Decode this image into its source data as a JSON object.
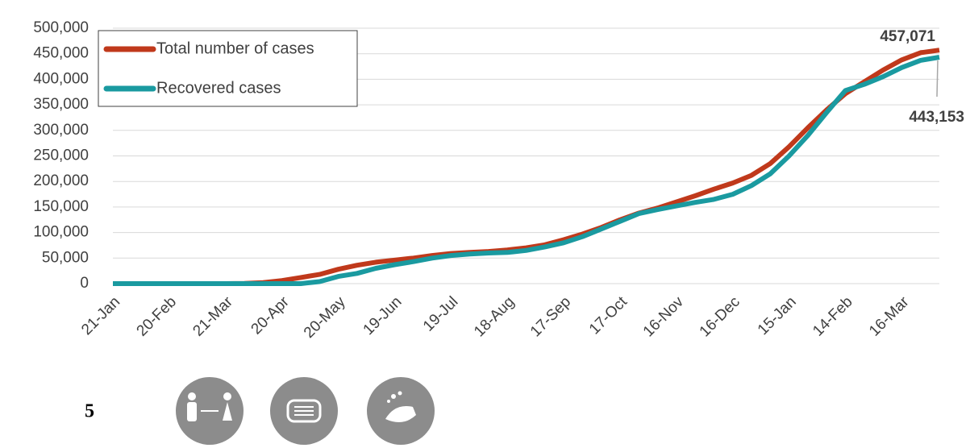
{
  "chart_data": {
    "type": "line",
    "categories": [
      "21-Jan",
      null,
      null,
      "20-Feb",
      null,
      null,
      "21-Mar",
      null,
      null,
      "20-Apr",
      null,
      null,
      "20-May",
      null,
      null,
      "19-Jun",
      null,
      null,
      "19-Jul",
      null,
      null,
      "18-Aug",
      null,
      null,
      "17-Sep",
      null,
      null,
      "17-Oct",
      null,
      null,
      "16-Nov",
      null,
      null,
      "16-Dec",
      null,
      null,
      "15-Jan",
      null,
      null,
      "14-Feb",
      null,
      null,
      "16-Mar",
      null,
      null
    ],
    "series": [
      {
        "name": "Total number of cases",
        "color": "#c0391b",
        "values": [
          0,
          0,
          0,
          0,
          0,
          0,
          0,
          500,
          2000,
          6000,
          12000,
          18000,
          28000,
          36000,
          42000,
          46000,
          50000,
          55000,
          59000,
          61000,
          63000,
          66000,
          70000,
          76000,
          86000,
          97000,
          110000,
          125000,
          138000,
          148000,
          160000,
          172000,
          185000,
          197000,
          212000,
          235000,
          268000,
          305000,
          340000,
          372000,
          395000,
          418000,
          438000,
          452000,
          457071
        ]
      },
      {
        "name": "Recovered cases",
        "color": "#1a9aa0",
        "values": [
          0,
          0,
          0,
          0,
          0,
          0,
          0,
          0,
          0,
          0,
          0,
          4000,
          14000,
          20000,
          30000,
          37000,
          43000,
          50000,
          55000,
          58000,
          60000,
          61000,
          65000,
          72000,
          80000,
          92000,
          107000,
          122000,
          137000,
          145000,
          152000,
          159000,
          165000,
          175000,
          192000,
          215000,
          250000,
          290000,
          335000,
          378000,
          390000,
          405000,
          423000,
          437000,
          443153
        ]
      }
    ],
    "ylim": [
      0,
      500000
    ],
    "yticks": [
      0,
      {
        "value": 50000,
        "label": "50,000"
      },
      {
        "value": 100000,
        "label": "100,000"
      },
      {
        "value": 150000,
        "label": "150,000"
      },
      {
        "value": 200000,
        "label": "200,000"
      },
      {
        "value": 250000,
        "label": "250,000"
      },
      {
        "value": 300000,
        "label": "300,000"
      },
      {
        "value": 350000,
        "label": "350,000"
      },
      {
        "value": 400000,
        "label": "400,000"
      },
      {
        "value": 450000,
        "label": "450,000"
      },
      {
        "value": 500000,
        "label": "500,000"
      }
    ],
    "grid": true,
    "annotations": [
      "457,071",
      "443,153"
    ],
    "legend": "upper left"
  },
  "page_number": "5"
}
